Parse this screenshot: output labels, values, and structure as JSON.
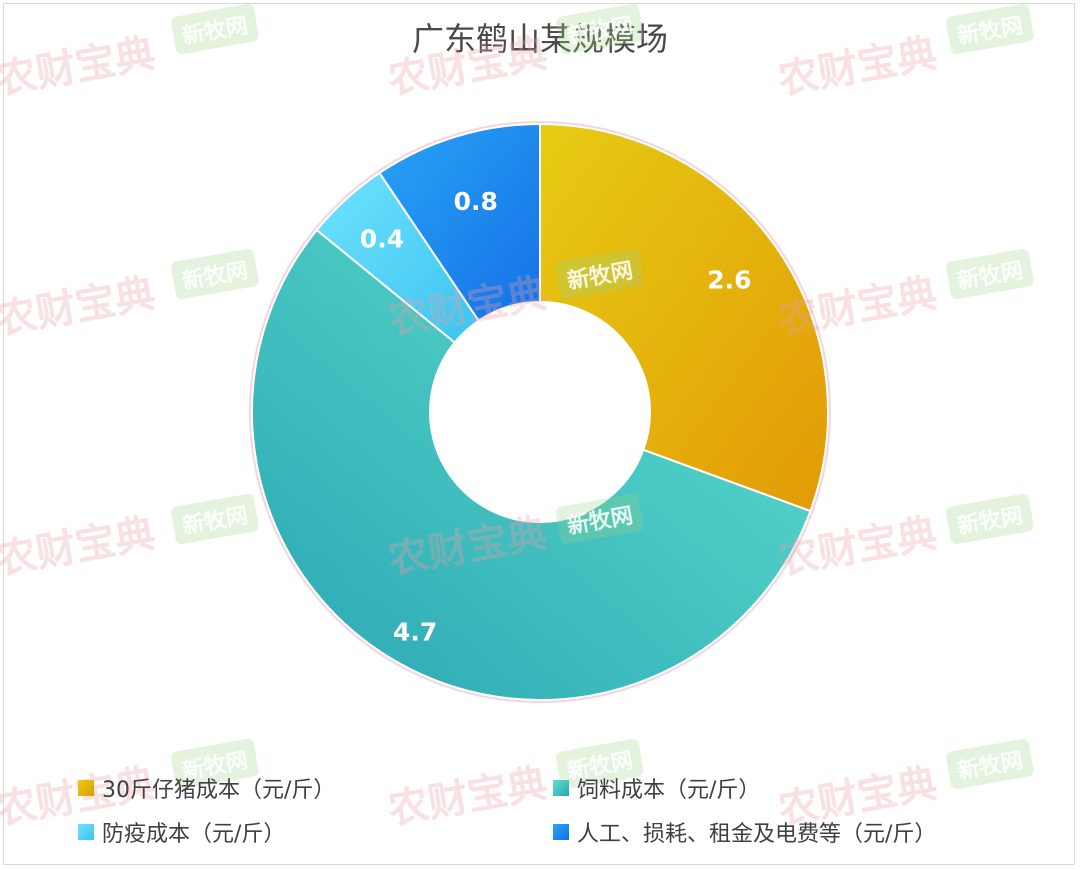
{
  "chart_data": {
    "type": "pie",
    "variant": "donut",
    "title": "广东鹤山某规模场",
    "categories": [
      "30斤仔猪成本（元/斤）",
      "饲料成本（元/斤）",
      "防疫成本（元/斤）",
      "人工、损耗、租金及电费等（元/斤）"
    ],
    "values": [
      2.6,
      4.7,
      0.4,
      0.8
    ],
    "data_labels": [
      "2.6",
      "4.7",
      "0.4",
      "0.8"
    ],
    "colors": [
      "#E3A80A",
      "#3DC4BC",
      "#55D5F5",
      "#1E90F0"
    ],
    "legend_position": "bottom"
  },
  "watermarks": {
    "primary": "农财宝典",
    "secondary": "新牧网"
  }
}
